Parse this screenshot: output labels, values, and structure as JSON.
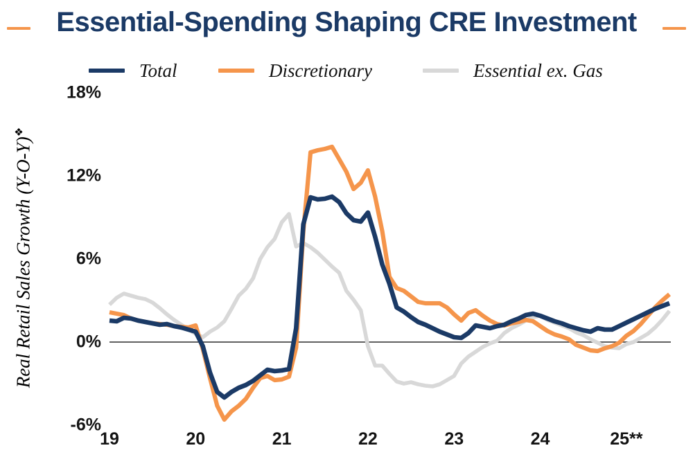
{
  "title": {
    "text": "Essential-Spending Shaping CRE Investment"
  },
  "colors": {
    "title_navy": "#1B3A66",
    "accent_orange": "#F5954B",
    "axis_text": "#141414",
    "zero_line": "#2B2B2B"
  },
  "legend": {
    "items": [
      {
        "label": "Total",
        "color": "#1B3A66"
      },
      {
        "label": "Discretionary",
        "color": "#F5954B"
      },
      {
        "label": "Essential ex. Gas",
        "color": "#D8D8D8"
      }
    ]
  },
  "y_axis": {
    "title": "Real Retail Sales Growth (Y-O-Y)",
    "footnote_marker": "❖",
    "tick_labels": [
      "18%",
      "12%",
      "6%",
      "0%",
      "-6%"
    ],
    "tick_values": [
      18,
      12,
      6,
      0,
      -6
    ]
  },
  "x_axis": {
    "tick_labels": [
      "19",
      "20",
      "21",
      "22",
      "23",
      "24",
      "25**"
    ]
  },
  "chart_data": {
    "type": "line",
    "title": "Essential-Spending Shaping CRE Investment",
    "ylabel": "Real Retail Sales Growth (Y-O-Y)",
    "x_unit": "monthly",
    "x_range": "Jan 2019 - Jul 2025",
    "x_tick_labels": [
      "19",
      "20",
      "21",
      "22",
      "23",
      "24",
      "25**"
    ],
    "ylim": [
      -6,
      18
    ],
    "y_ticks": [
      18,
      12,
      6,
      0,
      -6
    ],
    "grid": false,
    "zero_baseline": true,
    "legend_position": "top",
    "series": [
      {
        "name": "Total",
        "color": "#1B3A66",
        "stroke_width": 6.6,
        "values": [
          1.55,
          1.5,
          1.75,
          1.7,
          1.55,
          1.45,
          1.35,
          1.25,
          1.3,
          1.15,
          1.05,
          0.9,
          0.75,
          -0.3,
          -2.2,
          -3.6,
          -4.0,
          -3.6,
          -3.3,
          -3.1,
          -2.8,
          -2.4,
          -2.0,
          -2.1,
          -2.05,
          -1.95,
          1.0,
          8.5,
          10.45,
          10.3,
          10.35,
          10.5,
          10.1,
          9.3,
          8.8,
          8.7,
          9.35,
          7.6,
          5.6,
          4.2,
          2.5,
          2.2,
          1.8,
          1.45,
          1.25,
          1.0,
          0.75,
          0.55,
          0.35,
          0.3,
          0.65,
          1.2,
          1.1,
          1.0,
          1.15,
          1.25,
          1.5,
          1.7,
          1.95,
          2.05,
          1.9,
          1.7,
          1.5,
          1.35,
          1.15,
          1.0,
          0.85,
          0.75,
          1.0,
          0.9,
          0.9,
          1.15,
          1.4,
          1.65,
          1.9,
          2.15,
          2.4,
          2.6,
          2.8
        ]
      },
      {
        "name": "Discretionary",
        "color": "#F5954B",
        "stroke_width": 6.2,
        "values": [
          2.15,
          2.05,
          1.95,
          1.7,
          1.55,
          1.45,
          1.35,
          1.3,
          1.25,
          1.15,
          1.1,
          1.05,
          1.2,
          -0.5,
          -2.6,
          -4.6,
          -5.6,
          -5.0,
          -4.6,
          -4.1,
          -3.3,
          -2.6,
          -2.45,
          -2.75,
          -2.7,
          -2.5,
          -0.4,
          8.0,
          13.7,
          13.85,
          13.95,
          14.1,
          13.2,
          12.3,
          11.05,
          11.5,
          12.4,
          10.5,
          8.0,
          4.7,
          3.9,
          3.7,
          3.3,
          2.9,
          2.8,
          2.8,
          2.8,
          2.5,
          2.0,
          1.55,
          2.1,
          2.3,
          1.9,
          1.55,
          1.3,
          1.2,
          1.35,
          1.45,
          1.6,
          1.5,
          1.15,
          0.8,
          0.55,
          0.4,
          0.2,
          -0.2,
          -0.4,
          -0.6,
          -0.65,
          -0.45,
          -0.3,
          -0.05,
          0.45,
          0.8,
          1.3,
          1.9,
          2.5,
          3.0,
          3.45
        ]
      },
      {
        "name": "Essential ex. Gas",
        "color": "#D8D8D8",
        "stroke_width": 5.6,
        "values": [
          2.7,
          3.2,
          3.5,
          3.35,
          3.2,
          3.1,
          2.85,
          2.45,
          2.0,
          1.6,
          1.25,
          0.9,
          0.6,
          0.35,
          0.75,
          1.05,
          1.5,
          2.4,
          3.35,
          3.85,
          4.6,
          6.0,
          6.85,
          7.45,
          8.65,
          9.25,
          6.9,
          7.15,
          6.85,
          6.45,
          5.95,
          5.45,
          5.0,
          3.7,
          3.05,
          2.3,
          -0.3,
          -1.7,
          -1.7,
          -2.3,
          -2.85,
          -3.0,
          -2.9,
          -3.05,
          -3.15,
          -3.2,
          -3.05,
          -2.75,
          -2.45,
          -1.55,
          -1.05,
          -0.7,
          -0.35,
          -0.1,
          0.1,
          0.65,
          1.0,
          1.25,
          1.55,
          1.8,
          1.9,
          1.6,
          1.4,
          1.2,
          1.0,
          0.7,
          0.5,
          0.2,
          -0.05,
          -0.3,
          -0.4,
          -0.45,
          -0.15,
          0.0,
          0.3,
          0.6,
          1.05,
          1.6,
          2.25
        ]
      }
    ]
  }
}
